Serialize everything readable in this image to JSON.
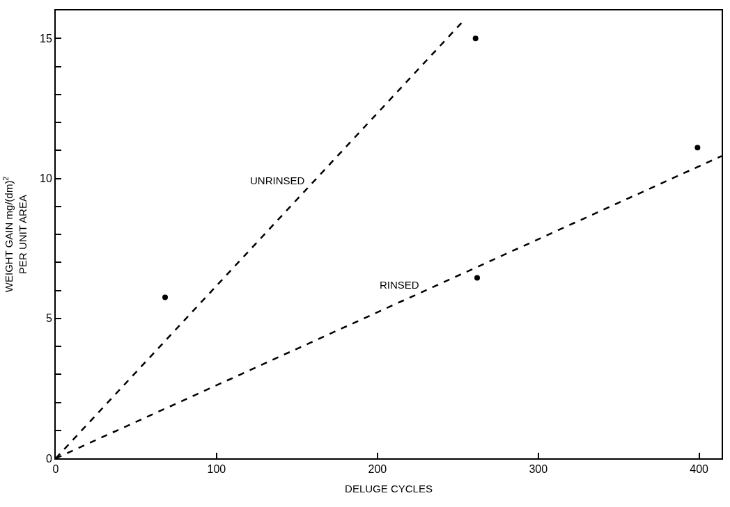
{
  "chart_data": {
    "type": "scatter",
    "xlabel": "DELUGE CYCLES",
    "ylabel": "WEIGHT GAIN mg/(dm)$^{2}$\nPER UNIT AREA",
    "xlim": [
      0,
      414
    ],
    "ylim": [
      0,
      16
    ],
    "xticks": [
      0,
      100,
      200,
      300,
      400
    ],
    "yticks": [
      0,
      {
        "value": 1,
        "label": null
      },
      {
        "value": 2,
        "label": null
      },
      {
        "value": 3,
        "label": null
      },
      {
        "value": 4,
        "label": null
      },
      5,
      {
        "value": 6,
        "label": null
      },
      {
        "value": 7,
        "label": null
      },
      {
        "value": 8,
        "label": null
      },
      {
        "value": 9,
        "label": null
      },
      10,
      {
        "value": 11,
        "label": null
      },
      {
        "value": 12,
        "label": null
      },
      {
        "value": 13,
        "label": null
      },
      {
        "value": 14,
        "label": null
      },
      15
    ],
    "grid": false,
    "legend": false,
    "series": [
      {
        "color": "#000000",
        "marker": "circle",
        "x": [
          68,
          261,
          262,
          399
        ],
        "values": [
          5.75,
          15.0,
          6.45,
          11.1
        ]
      },
      {
        "type": "line",
        "name": "UNRINSED",
        "color": "#000000",
        "marker": "none",
        "line_style": "dashed",
        "x": [
          0,
          253
        ],
        "values": [
          0,
          15.6
        ]
      },
      {
        "type": "line",
        "name": "RINSED",
        "color": "#000000",
        "marker": "none",
        "line_style": "dashed",
        "x": [
          0,
          414
        ],
        "values": [
          0,
          10.8
        ]
      }
    ]
  }
}
